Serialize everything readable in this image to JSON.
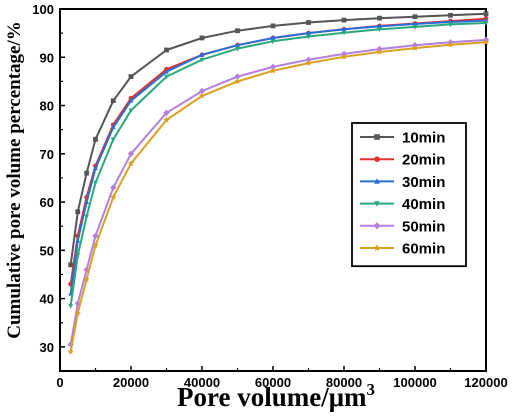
{
  "chart_data": {
    "type": "line",
    "xlabel": "Pore volume/μm",
    "xlabel_sup": "3",
    "ylabel": "Cumulative pore volume percentage/%",
    "xlim": [
      0,
      120000
    ],
    "ylim": [
      25,
      100
    ],
    "x_ticks": [
      0,
      20000,
      40000,
      60000,
      80000,
      100000,
      120000
    ],
    "x_tick_labels": [
      "0",
      "20000",
      "40000",
      "60000",
      "80000",
      "100000",
      "120000"
    ],
    "y_ticks": [
      30,
      40,
      50,
      60,
      70,
      80,
      90,
      100
    ],
    "y_tick_labels": [
      "30",
      "40",
      "50",
      "60",
      "70",
      "80",
      "90",
      "100"
    ],
    "grid": false,
    "legend_position": "center-right",
    "series": [
      {
        "name": "10min",
        "color": "#555555",
        "marker": "square",
        "x": [
          3000,
          5000,
          7500,
          10000,
          15000,
          20000,
          30000,
          40000,
          50000,
          60000,
          70000,
          80000,
          90000,
          100000,
          110000,
          120000
        ],
        "y": [
          47,
          58,
          66,
          73,
          81,
          86,
          91.5,
          94,
          95.5,
          96.5,
          97.2,
          97.7,
          98.1,
          98.4,
          98.7,
          99
        ]
      },
      {
        "name": "20min",
        "color": "#e03030",
        "marker": "circle",
        "x": [
          3000,
          5000,
          7500,
          10000,
          15000,
          20000,
          30000,
          40000,
          50000,
          60000,
          70000,
          80000,
          90000,
          100000,
          110000,
          120000
        ],
        "y": [
          43,
          53,
          61,
          67.5,
          76,
          81.5,
          87.5,
          90.5,
          92.5,
          94,
          95,
          95.8,
          96.5,
          97,
          97.5,
          98
        ]
      },
      {
        "name": "30min",
        "color": "#2a6fd6",
        "marker": "triangle-up",
        "x": [
          3000,
          5000,
          7500,
          10000,
          15000,
          20000,
          30000,
          40000,
          50000,
          60000,
          70000,
          80000,
          90000,
          100000,
          110000,
          120000
        ],
        "y": [
          41,
          52,
          60,
          67,
          75.5,
          81,
          87,
          90.5,
          92.5,
          94,
          95,
          95.8,
          96.4,
          96.9,
          97.3,
          97.6
        ]
      },
      {
        "name": "40min",
        "color": "#2aa87a",
        "marker": "triangle-down",
        "x": [
          3000,
          5000,
          7500,
          10000,
          15000,
          20000,
          30000,
          40000,
          50000,
          60000,
          70000,
          80000,
          90000,
          100000,
          110000,
          120000
        ],
        "y": [
          38.5,
          49,
          57,
          64,
          73,
          79,
          86,
          89.5,
          91.8,
          93.3,
          94.3,
          95.1,
          95.8,
          96.3,
          96.8,
          97.1
        ]
      },
      {
        "name": "50min",
        "color": "#b57fe0",
        "marker": "diamond",
        "x": [
          3000,
          5000,
          7500,
          10000,
          15000,
          20000,
          30000,
          40000,
          50000,
          60000,
          70000,
          80000,
          90000,
          100000,
          110000,
          120000
        ],
        "y": [
          30.5,
          39,
          46,
          53,
          63,
          70,
          78.5,
          83,
          86,
          88,
          89.5,
          90.7,
          91.7,
          92.5,
          93.1,
          93.6
        ]
      },
      {
        "name": "60min",
        "color": "#d9a021",
        "marker": "star",
        "x": [
          3000,
          5000,
          7500,
          10000,
          15000,
          20000,
          30000,
          40000,
          50000,
          60000,
          70000,
          80000,
          90000,
          100000,
          110000,
          120000
        ],
        "y": [
          29,
          37,
          44,
          51,
          61,
          68,
          77,
          82,
          85,
          87.2,
          88.8,
          90.1,
          91.1,
          91.9,
          92.6,
          93.1
        ]
      }
    ]
  }
}
